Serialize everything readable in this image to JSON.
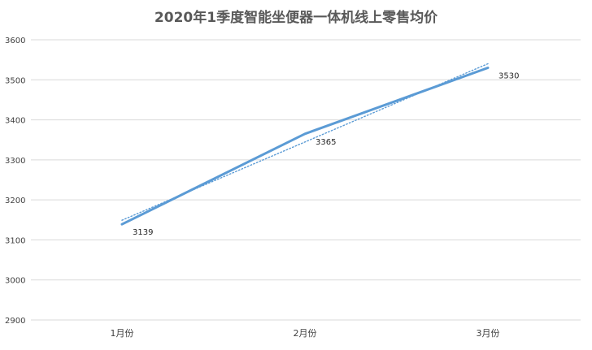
{
  "chart_data": {
    "type": "line",
    "title": "2020年1季度智能坐便器一体机线上零售均价",
    "categories": [
      "1月份",
      "2月份",
      "3月份"
    ],
    "series": [
      {
        "values": [
          3139,
          3365,
          3530
        ],
        "color": "#5b9bd5"
      }
    ],
    "trendline": {
      "kind": "linear",
      "style": "dotted",
      "color": "#5b9bd5"
    },
    "ylim": [
      2900,
      3600
    ],
    "yticks": [
      2900,
      3000,
      3100,
      3200,
      3300,
      3400,
      3500,
      3600
    ],
    "grid": true,
    "legend": "none",
    "data_labels": true
  }
}
